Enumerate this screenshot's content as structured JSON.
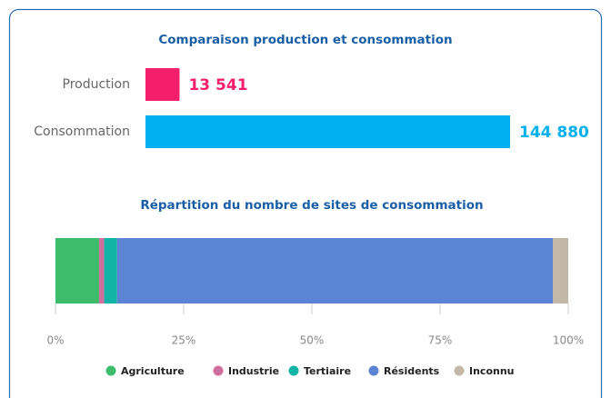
{
  "chart_data": [
    {
      "type": "bar",
      "title": "Comparaison production et consommation",
      "categories": [
        "Production",
        "Consommation"
      ],
      "values": [
        13541,
        144880
      ],
      "value_labels": [
        "13 541",
        "144 880"
      ],
      "colors": [
        "#f41f6b",
        "#00b0ef"
      ]
    },
    {
      "type": "stacked_bar",
      "title": "Répartition du nombre de sites de consommation",
      "series": [
        {
          "name": "Agriculture",
          "color": "#3dbd6a",
          "values": [
            8.5
          ]
        },
        {
          "name": "Industrie",
          "color": "#d06e9e",
          "values": [
            1
          ]
        },
        {
          "name": "Tertiaire",
          "color": "#12b5a5",
          "values": [
            2.5
          ]
        },
        {
          "name": "Résidents",
          "color": "#5b84d4",
          "values": [
            85
          ]
        },
        {
          "name": "Inconnu",
          "color": "#c3b8a8",
          "values": [
            3
          ]
        }
      ],
      "xlim": [
        0,
        100
      ],
      "xticks": [
        {
          "value": 0,
          "label": "0%"
        },
        {
          "value": 25,
          "label": "25%"
        },
        {
          "value": 50,
          "label": "50%"
        },
        {
          "value": 75,
          "label": "75%"
        },
        {
          "value": 100,
          "label": "100%"
        }
      ]
    }
  ]
}
